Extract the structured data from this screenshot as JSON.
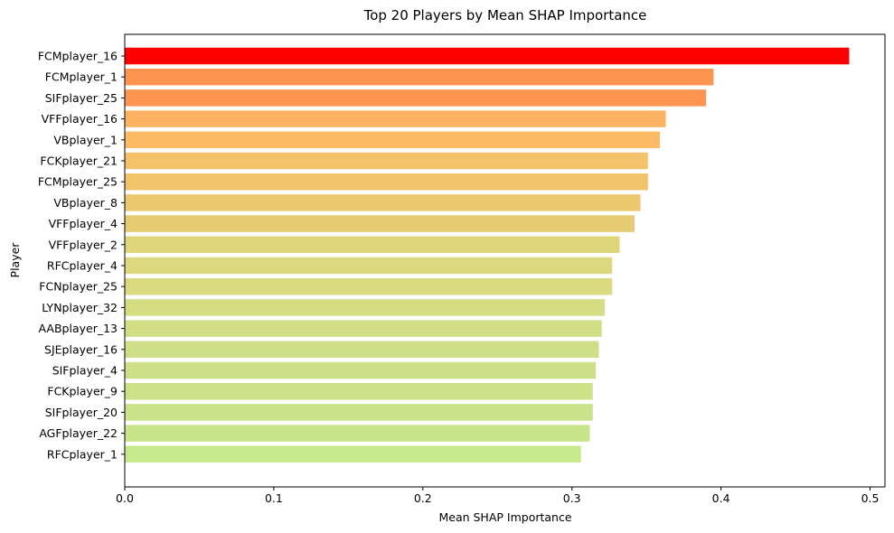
{
  "chart_data": {
    "type": "bar",
    "orientation": "horizontal",
    "title": "Top 20 Players by Mean SHAP Importance",
    "xlabel": "Mean SHAP Importance",
    "ylabel": "Player",
    "xlim": [
      0,
      0.51
    ],
    "xticks": [
      "0.0",
      "0.1",
      "0.2",
      "0.3",
      "0.4",
      "0.5"
    ],
    "grid": false,
    "categories": [
      "FCMplayer_16",
      "FCMplayer_1",
      "SIFplayer_25",
      "VFFplayer_16",
      "VBplayer_1",
      "FCKplayer_21",
      "FCMplayer_25",
      "VBplayer_8",
      "VFFplayer_4",
      "VFFplayer_2",
      "RFCplayer_4",
      "FCNplayer_25",
      "LYNplayer_32",
      "AABplayer_13",
      "SJEplayer_16",
      "SIFplayer_4",
      "FCKplayer_9",
      "SIFplayer_20",
      "AGFplayer_22",
      "RFCplayer_1"
    ],
    "values": [
      0.486,
      0.395,
      0.39,
      0.363,
      0.359,
      0.351,
      0.351,
      0.346,
      0.342,
      0.332,
      0.327,
      0.327,
      0.322,
      0.32,
      0.318,
      0.316,
      0.314,
      0.314,
      0.312,
      0.306
    ],
    "colors": [
      "#ff0000",
      "#fd9450",
      "#fd9450",
      "#fdb462",
      "#fdbb65",
      "#f4c26a",
      "#f1c46c",
      "#ebc870",
      "#e6cb73",
      "#dfd57a",
      "#dbd87e",
      "#dada80",
      "#d4dc84",
      "#d2de86",
      "#cfdf87",
      "#cde088",
      "#cbe289",
      "#cae38a",
      "#c9e58a",
      "#c6e98b"
    ]
  }
}
